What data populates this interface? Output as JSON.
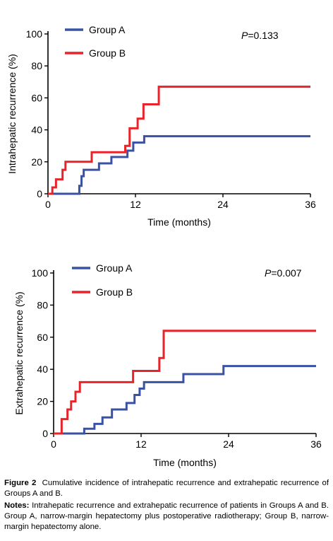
{
  "colors": {
    "group_a": "#3a52a4",
    "group_b": "#e8242a",
    "axis": "#000000"
  },
  "chart_data": [
    {
      "type": "line",
      "step": true,
      "xlabel": "Time (months)",
      "ylabel": "Intrahepatic recurrence (%)",
      "xlim": [
        0,
        36
      ],
      "ylim": [
        0,
        100
      ],
      "xticks": [
        "0",
        "12",
        "24",
        "36"
      ],
      "yticks": [
        "0",
        "20",
        "40",
        "60",
        "80",
        "100"
      ],
      "annotation": {
        "italic": "P",
        "text": "=0.133"
      },
      "legend_position": "top-left",
      "series": [
        {
          "name": "Group A",
          "color": "#3a52a4",
          "x": [
            0,
            4.3,
            4.6,
            4.9,
            7,
            8.7,
            10.9,
            11.7,
            13.2,
            36
          ],
          "y": [
            0,
            5,
            11,
            15,
            19,
            23,
            27,
            32,
            36,
            36
          ]
        },
        {
          "name": "Group B",
          "color": "#e8242a",
          "x": [
            0,
            0.6,
            1.1,
            2.0,
            2.4,
            6.0,
            10.6,
            11.2,
            12.3,
            13.1,
            15.2,
            36
          ],
          "y": [
            0,
            4,
            9,
            15,
            20,
            26,
            30,
            41,
            47,
            56,
            67,
            67
          ]
        }
      ]
    },
    {
      "type": "line",
      "step": true,
      "xlabel": "Time (months)",
      "ylabel": "Extrahepatic recurrence (%)",
      "xlim": [
        0,
        36
      ],
      "ylim": [
        0,
        100
      ],
      "xticks": [
        "0",
        "12",
        "24",
        "36"
      ],
      "yticks": [
        "0",
        "20",
        "40",
        "60",
        "80",
        "100"
      ],
      "annotation": {
        "italic": "P",
        "text": "=0.007"
      },
      "legend_position": "top-left",
      "series": [
        {
          "name": "Group A",
          "color": "#3a52a4",
          "x": [
            0,
            4.2,
            5.6,
            6.7,
            8.0,
            10.0,
            11.1,
            11.8,
            12.4,
            17.8,
            23.3,
            36
          ],
          "y": [
            0,
            3,
            6,
            10,
            15,
            19,
            24,
            28,
            32,
            37,
            42,
            42
          ]
        },
        {
          "name": "Group B",
          "color": "#e8242a",
          "x": [
            0,
            1.1,
            1.9,
            2.4,
            3.0,
            3.6,
            10.9,
            14.5,
            15.1,
            36
          ],
          "y": [
            0,
            9,
            15,
            20,
            26,
            32,
            39,
            47,
            64,
            64
          ]
        }
      ]
    }
  ],
  "caption": {
    "figure_label": "Figure 2",
    "figure_text": "Cumulative incidence of intrahepatic recurrence and extrahepatic recurrence of Groups A and B.",
    "notes_label": "Notes:",
    "notes_text": "Intrahepatic recurrence and extrahepatic recurrence of patients in Groups A and B. Group A, narrow-margin hepatectomy plus postoperative radiotherapy; Group B, narrow-margin hepatectomy alone."
  }
}
